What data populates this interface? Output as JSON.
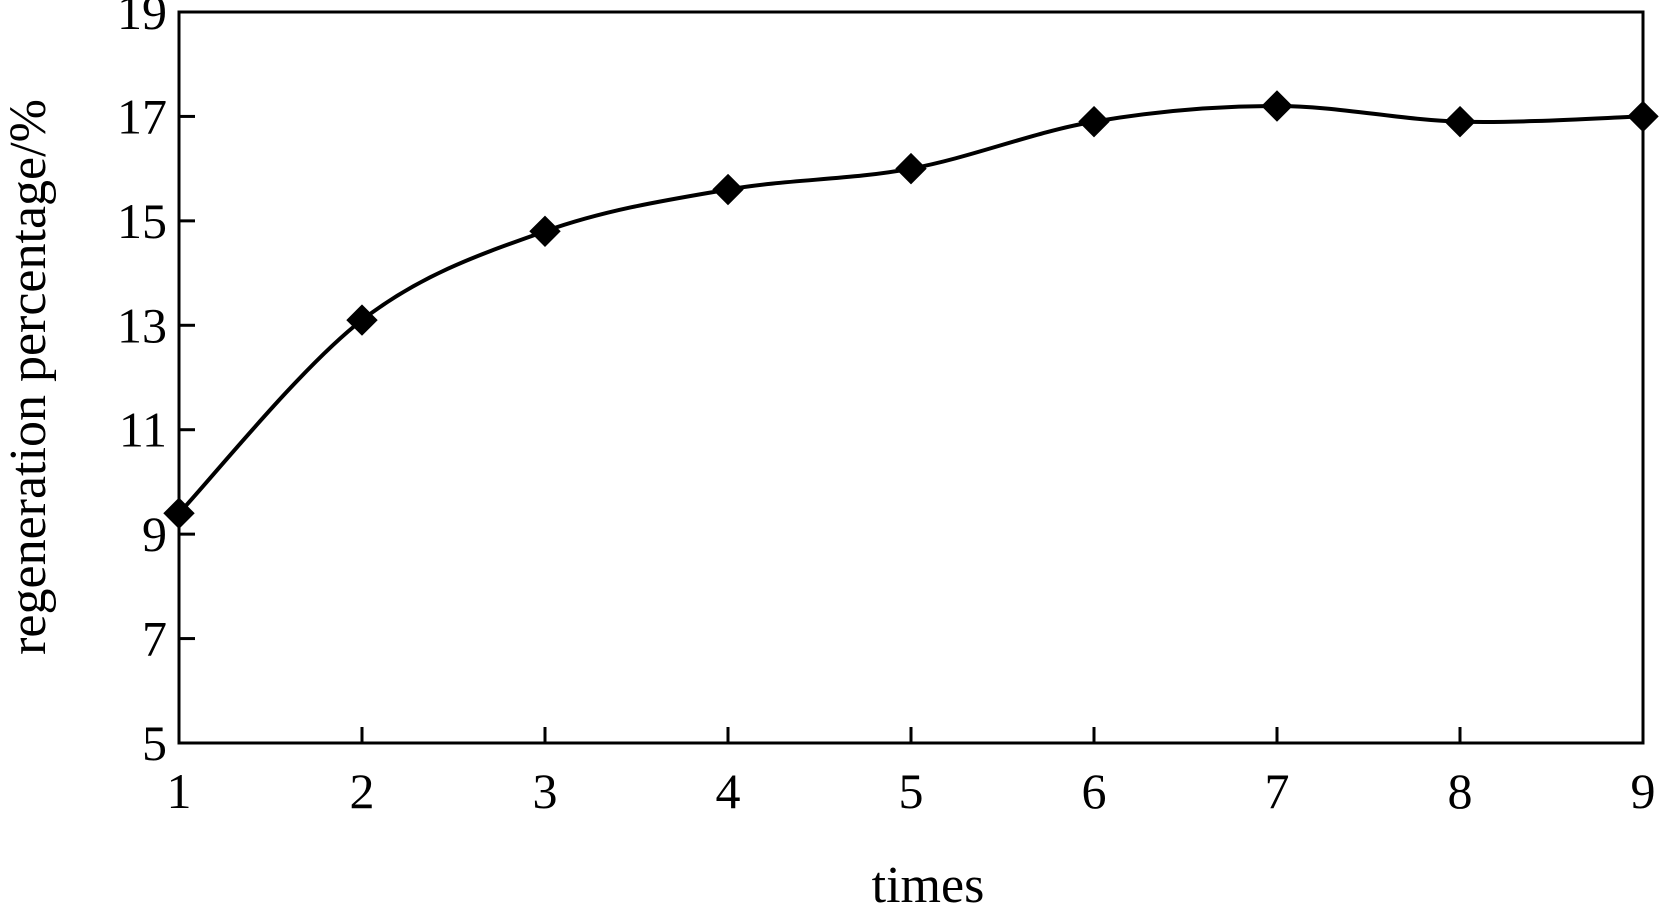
{
  "chart_data": {
    "type": "line",
    "title": "",
    "xlabel": "times",
    "ylabel": "regeneration percentage/%",
    "x": [
      1,
      2,
      3,
      4,
      5,
      6,
      7,
      8,
      9
    ],
    "x_ticks": [
      "1",
      "2",
      "3",
      "4",
      "5",
      "6",
      "7",
      "8",
      "9"
    ],
    "y_ticks": [
      "5",
      "7",
      "9",
      "11",
      "13",
      "15",
      "17",
      "19"
    ],
    "xlim": [
      1,
      9
    ],
    "ylim": [
      5,
      19
    ],
    "series": [
      {
        "values": [
          9.4,
          13.1,
          14.8,
          15.6,
          16.0,
          16.9,
          17.2,
          16.9,
          17.0
        ],
        "marker": "diamond",
        "color": "#000000"
      }
    ],
    "grid": false,
    "legend": "none"
  }
}
